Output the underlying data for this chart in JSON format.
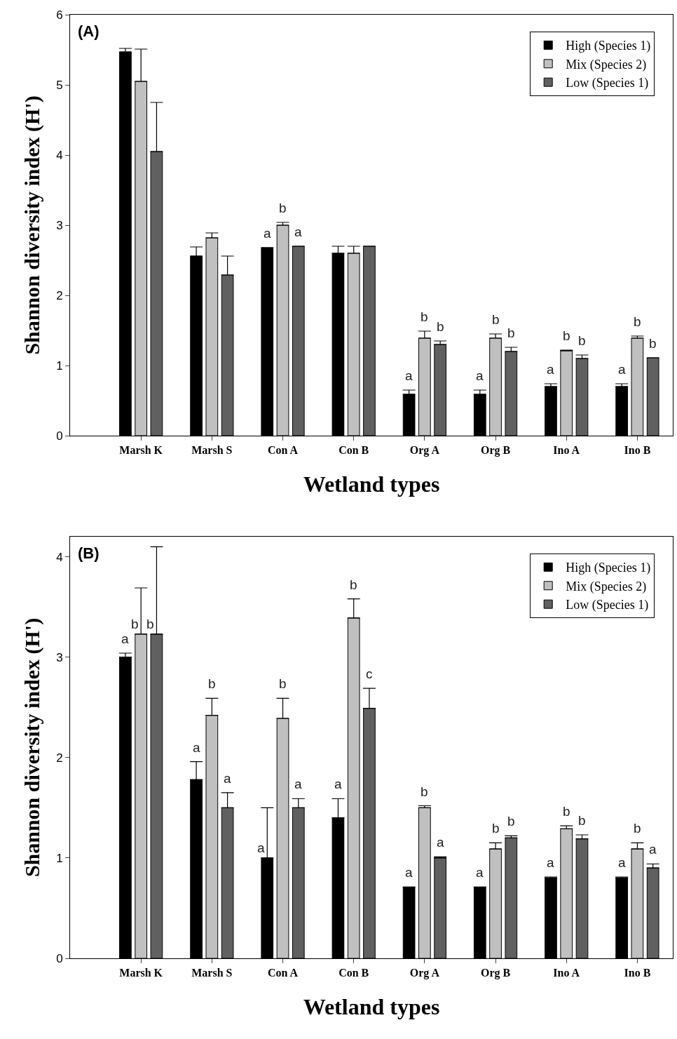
{
  "chart_data": [
    {
      "type": "bar",
      "title": "(A)",
      "xlabel": "Wetland types",
      "ylabel": "Shannon diversity index (H')",
      "categories": [
        "Marsh K",
        "Marsh S",
        "Con A",
        "Con B",
        "Org A",
        "Org B",
        "Ino A",
        "Ino B"
      ],
      "ylim": [
        0,
        6
      ],
      "yticks": [
        0,
        1,
        2,
        3,
        4,
        5,
        6
      ],
      "legend": "top right",
      "series": [
        {
          "name": "High (Species 1)",
          "color": "#000000",
          "values": [
            5.47,
            2.56,
            2.68,
            2.6,
            0.59,
            0.59,
            0.7,
            0.7
          ],
          "errors": [
            [
              5.47,
              5.52
            ],
            [
              2.56,
              2.69
            ],
            null,
            [
              2.6,
              2.7
            ],
            [
              0.59,
              0.65
            ],
            [
              0.59,
              0.65
            ],
            [
              0.7,
              0.74
            ],
            [
              0.7,
              0.74
            ]
          ],
          "value_labels": [
            null,
            null,
            "a",
            null,
            "a",
            "a",
            "a",
            "a"
          ]
        },
        {
          "name": "Mix (Species 2)",
          "color": "#c0c0c0",
          "values": [
            5.05,
            2.82,
            3.0,
            2.6,
            1.39,
            1.39,
            1.21,
            1.39
          ],
          "errors": [
            [
              5.05,
              5.51
            ],
            [
              2.82,
              2.89
            ],
            [
              3.0,
              3.04
            ],
            [
              2.6,
              2.7
            ],
            [
              1.39,
              1.49
            ],
            [
              1.39,
              1.45
            ],
            [
              1.21,
              1.22
            ],
            [
              1.39,
              1.42
            ]
          ],
          "value_labels": [
            null,
            null,
            "b",
            null,
            "b",
            "b",
            "b",
            "b"
          ]
        },
        {
          "name": "Low (Species 1)",
          "color": "#606060",
          "values": [
            4.05,
            2.29,
            2.7,
            2.7,
            1.3,
            1.2,
            1.1,
            1.11
          ],
          "errors": [
            [
              4.05,
              4.75
            ],
            [
              2.29,
              2.56
            ],
            null,
            null,
            [
              1.3,
              1.35
            ],
            [
              1.2,
              1.26
            ],
            [
              1.1,
              1.15
            ],
            null
          ],
          "value_labels": [
            null,
            null,
            "a",
            null,
            "b",
            "b",
            "b",
            "b"
          ]
        }
      ]
    },
    {
      "type": "bar",
      "title": "(B)",
      "xlabel": "Wetland types",
      "ylabel": "Shannon diversity index (H')",
      "categories": [
        "Marsh K",
        "Marsh S",
        "Con A",
        "Con B",
        "Org A",
        "Org B",
        "Ino A",
        "Ino B"
      ],
      "ylim": [
        0,
        4.2
      ],
      "yticks": [
        0,
        1,
        2,
        3,
        4
      ],
      "legend": "top right",
      "series": [
        {
          "name": "High (Species 1)",
          "color": "#000000",
          "values": [
            3.0,
            1.78,
            1.0,
            1.4,
            0.71,
            0.71,
            0.8,
            0.8
          ],
          "errors": [
            [
              3.0,
              3.04
            ],
            [
              1.78,
              1.96
            ],
            [
              1.0,
              1.5
            ],
            [
              1.4,
              1.59
            ],
            null,
            null,
            [
              0.8,
              0.81
            ],
            [
              0.8,
              0.81
            ]
          ],
          "value_labels": [
            "a",
            "a",
            "a",
            "a",
            "a",
            "a",
            "a",
            "a"
          ]
        },
        {
          "name": "Mix (Species 2)",
          "color": "#c0c0c0",
          "values": [
            3.23,
            2.42,
            2.39,
            3.39,
            1.5,
            1.09,
            1.29,
            1.09
          ],
          "errors": [
            [
              3.23,
              3.69
            ],
            [
              2.42,
              2.59
            ],
            [
              2.39,
              2.59
            ],
            [
              3.39,
              3.58
            ],
            [
              1.5,
              1.52
            ],
            [
              1.09,
              1.15
            ],
            [
              1.29,
              1.32
            ],
            [
              1.09,
              1.15
            ]
          ],
          "value_labels": [
            "b",
            "b",
            "b",
            "b",
            "b",
            "b",
            "b",
            "b"
          ]
        },
        {
          "name": "Low (Species 1)",
          "color": "#606060",
          "values": [
            3.23,
            1.5,
            1.5,
            2.49,
            1.0,
            1.2,
            1.19,
            0.9
          ],
          "errors": [
            [
              3.23,
              4.1
            ],
            [
              1.5,
              1.65
            ],
            [
              1.5,
              1.59
            ],
            [
              2.49,
              2.69
            ],
            [
              1.0,
              1.01
            ],
            [
              1.2,
              1.22
            ],
            [
              1.19,
              1.23
            ],
            [
              0.9,
              0.94
            ]
          ],
          "value_labels": [
            "b",
            "a",
            "a",
            "c",
            "a",
            "b",
            "b",
            "a"
          ]
        }
      ]
    }
  ]
}
